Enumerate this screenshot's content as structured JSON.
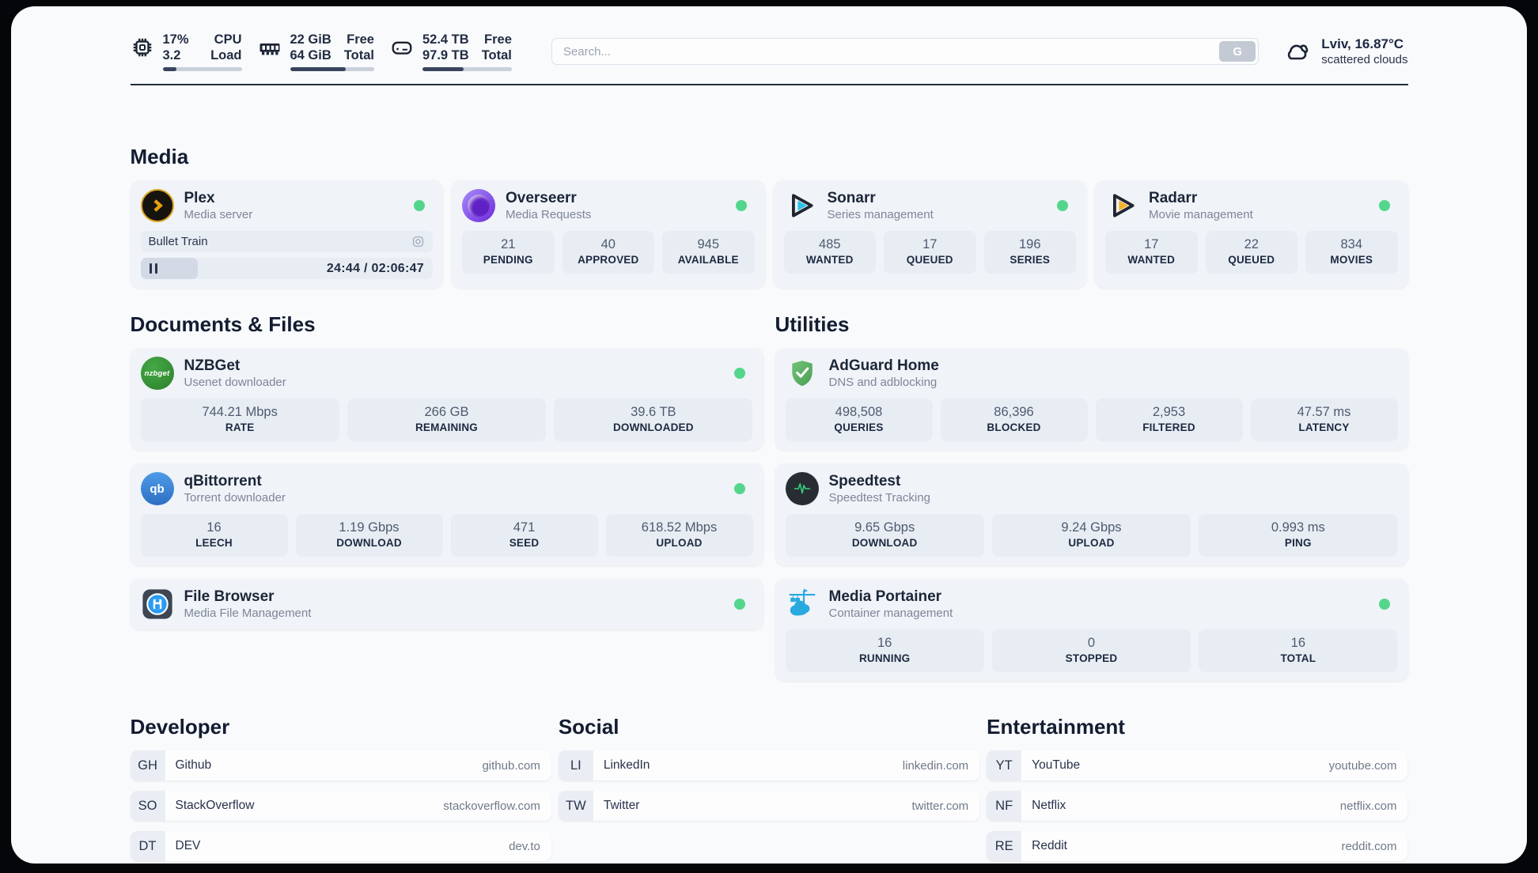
{
  "header": {
    "stats": [
      {
        "icon": "cpu-icon",
        "line1": "17%",
        "line2": "3.2",
        "label1": "CPU",
        "label2": "Load",
        "progress": 17
      },
      {
        "icon": "memory-icon",
        "line1": "22 GiB",
        "line2": "64 GiB",
        "label1": "Free",
        "label2": "Total",
        "progress": 66
      },
      {
        "icon": "disk-icon",
        "line1": "52.4 TB",
        "line2": "97.9 TB",
        "label1": "Free",
        "label2": "Total",
        "progress": 46
      }
    ],
    "search": {
      "placeholder": "Search...",
      "button": "G"
    },
    "weather": {
      "location": "Lviv, 16.87°C",
      "condition": "scattered clouds"
    }
  },
  "sections": {
    "media": "Media",
    "documents": "Documents & Files",
    "utilities": "Utilities",
    "developer": "Developer",
    "social": "Social",
    "entertainment": "Entertainment"
  },
  "apps": {
    "plex": {
      "name": "Plex",
      "desc": "Media server",
      "now_playing": "Bullet Train",
      "time": "24:44 / 02:06:47",
      "progress_pct": 19.5
    },
    "overseerr": {
      "name": "Overseerr",
      "desc": "Media Requests",
      "stats": [
        {
          "value": "21",
          "label": "PENDING"
        },
        {
          "value": "40",
          "label": "APPROVED"
        },
        {
          "value": "945",
          "label": "AVAILABLE"
        }
      ]
    },
    "sonarr": {
      "name": "Sonarr",
      "desc": "Series management",
      "stats": [
        {
          "value": "485",
          "label": "WANTED"
        },
        {
          "value": "17",
          "label": "QUEUED"
        },
        {
          "value": "196",
          "label": "SERIES"
        }
      ]
    },
    "radarr": {
      "name": "Radarr",
      "desc": "Movie management",
      "stats": [
        {
          "value": "17",
          "label": "WANTED"
        },
        {
          "value": "22",
          "label": "QUEUED"
        },
        {
          "value": "834",
          "label": "MOVIES"
        }
      ]
    },
    "nzbget": {
      "name": "NZBGet",
      "desc": "Usenet downloader",
      "icon_text": "nzbget",
      "stats": [
        {
          "value": "744.21 Mbps",
          "label": "RATE"
        },
        {
          "value": "266 GB",
          "label": "REMAINING"
        },
        {
          "value": "39.6 TB",
          "label": "DOWNLOADED"
        }
      ]
    },
    "qbittorrent": {
      "name": "qBittorrent",
      "desc": "Torrent downloader",
      "icon_text": "qb",
      "stats": [
        {
          "value": "16",
          "label": "LEECH"
        },
        {
          "value": "1.19 Gbps",
          "label": "DOWNLOAD"
        },
        {
          "value": "471",
          "label": "SEED"
        },
        {
          "value": "618.52 Mbps",
          "label": "UPLOAD"
        }
      ]
    },
    "filebrowser": {
      "name": "File Browser",
      "desc": "Media File Management"
    },
    "adguard": {
      "name": "AdGuard Home",
      "desc": "DNS and adblocking",
      "stats": [
        {
          "value": "498,508",
          "label": "QUERIES"
        },
        {
          "value": "86,396",
          "label": "BLOCKED"
        },
        {
          "value": "2,953",
          "label": "FILTERED"
        },
        {
          "value": "47.57 ms",
          "label": "LATENCY"
        }
      ]
    },
    "speedtest": {
      "name": "Speedtest",
      "desc": "Speedtest Tracking",
      "stats": [
        {
          "value": "9.65 Gbps",
          "label": "DOWNLOAD"
        },
        {
          "value": "9.24 Gbps",
          "label": "UPLOAD"
        },
        {
          "value": "0.993 ms",
          "label": "PING"
        }
      ]
    },
    "portainer": {
      "name": "Media Portainer",
      "desc": "Container management",
      "stats": [
        {
          "value": "16",
          "label": "RUNNING"
        },
        {
          "value": "0",
          "label": "STOPPED"
        },
        {
          "value": "16",
          "label": "TOTAL"
        }
      ]
    }
  },
  "bookmarks": {
    "developer": [
      {
        "abbr": "GH",
        "name": "Github",
        "url": "github.com"
      },
      {
        "abbr": "SO",
        "name": "StackOverflow",
        "url": "stackoverflow.com"
      },
      {
        "abbr": "DT",
        "name": "DEV",
        "url": "dev.to"
      }
    ],
    "social": [
      {
        "abbr": "LI",
        "name": "LinkedIn",
        "url": "linkedin.com"
      },
      {
        "abbr": "TW",
        "name": "Twitter",
        "url": "twitter.com"
      }
    ],
    "entertainment": [
      {
        "abbr": "YT",
        "name": "YouTube",
        "url": "youtube.com"
      },
      {
        "abbr": "NF",
        "name": "Netflix",
        "url": "netflix.com"
      },
      {
        "abbr": "RE",
        "name": "Reddit",
        "url": "reddit.com"
      }
    ]
  },
  "colors": {
    "status_green": "#53d68c",
    "plex_amber": "#d9a520",
    "sonarr_cyan": "#2bc2e9",
    "radarr_amber": "#f5b32a",
    "portainer_blue": "#28a9e0"
  }
}
